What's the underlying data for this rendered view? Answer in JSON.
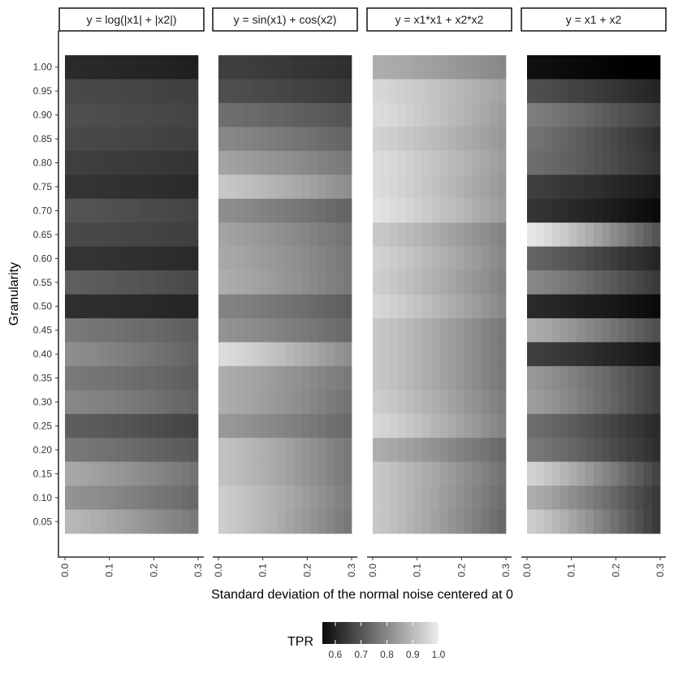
{
  "chart_data": {
    "type": "heatmap",
    "xlabel": "Standard deviation of the normal noise centered at 0",
    "ylabel": "Granularity",
    "x_ticks": [
      "0.0",
      "0.1",
      "0.2",
      "0.3"
    ],
    "x_range": [
      0,
      0.3
    ],
    "x_cells": 16,
    "granularity": [
      "1.00",
      "0.95",
      "0.90",
      "0.85",
      "0.80",
      "0.75",
      "0.70",
      "0.65",
      "0.60",
      "0.55",
      "0.50",
      "0.45",
      "0.40",
      "0.35",
      "0.30",
      "0.25",
      "0.20",
      "0.15",
      "0.10",
      "0.05"
    ],
    "legend": {
      "title": "TPR",
      "labels": [
        "0.6",
        "0.7",
        "0.8",
        "0.9",
        "1.0"
      ],
      "range": [
        0.55,
        1.0
      ]
    },
    "colors": {
      "low": "#000000",
      "high": "#ececec"
    },
    "facets": [
      {
        "label": "y = log(|x1| + |x2|)",
        "tpr_start": [
          0.63,
          0.69,
          0.7,
          0.69,
          0.67,
          0.65,
          0.71,
          0.69,
          0.65,
          0.73,
          0.64,
          0.78,
          0.82,
          0.78,
          0.81,
          0.73,
          0.78,
          0.87,
          0.83,
          0.9
        ],
        "tpr_drop": [
          0.02,
          0.02,
          0.02,
          0.02,
          0.02,
          0.02,
          0.03,
          0.02,
          0.02,
          0.04,
          0.02,
          0.05,
          0.08,
          0.05,
          0.07,
          0.05,
          0.06,
          0.1,
          0.08,
          0.12
        ]
      },
      {
        "label": "y = sin(x1) + cos(x2)",
        "tpr_start": [
          0.67,
          0.7,
          0.76,
          0.81,
          0.86,
          0.93,
          0.82,
          0.86,
          0.87,
          0.88,
          0.8,
          0.83,
          0.97,
          0.88,
          0.88,
          0.84,
          0.92,
          0.92,
          0.94,
          0.94
        ],
        "tpr_drop": [
          0.03,
          0.04,
          0.05,
          0.07,
          0.08,
          0.11,
          0.08,
          0.09,
          0.09,
          0.1,
          0.07,
          0.08,
          0.15,
          0.1,
          0.11,
          0.09,
          0.14,
          0.14,
          0.15,
          0.16
        ]
      },
      {
        "label": "y = x1*x1 + x2*x2",
        "tpr_start": [
          0.88,
          0.96,
          0.97,
          0.95,
          0.97,
          0.97,
          0.98,
          0.93,
          0.95,
          0.94,
          0.96,
          0.93,
          0.93,
          0.93,
          0.94,
          0.96,
          0.88,
          0.93,
          0.93,
          0.93
        ],
        "tpr_drop": [
          0.07,
          0.1,
          0.12,
          0.11,
          0.12,
          0.13,
          0.13,
          0.13,
          0.14,
          0.14,
          0.15,
          0.15,
          0.15,
          0.15,
          0.15,
          0.16,
          0.13,
          0.16,
          0.17,
          0.18
        ]
      },
      {
        "label": "y = x1 + x2",
        "tpr_start": [
          0.58,
          0.7,
          0.79,
          0.77,
          0.76,
          0.67,
          0.65,
          0.99,
          0.74,
          0.81,
          0.63,
          0.88,
          0.67,
          0.84,
          0.85,
          0.76,
          0.78,
          0.95,
          0.88,
          0.94
        ],
        "tpr_drop": [
          0.04,
          0.08,
          0.12,
          0.13,
          0.11,
          0.07,
          0.08,
          0.28,
          0.12,
          0.15,
          0.06,
          0.18,
          0.08,
          0.17,
          0.18,
          0.13,
          0.14,
          0.27,
          0.22,
          0.28
        ]
      }
    ]
  }
}
